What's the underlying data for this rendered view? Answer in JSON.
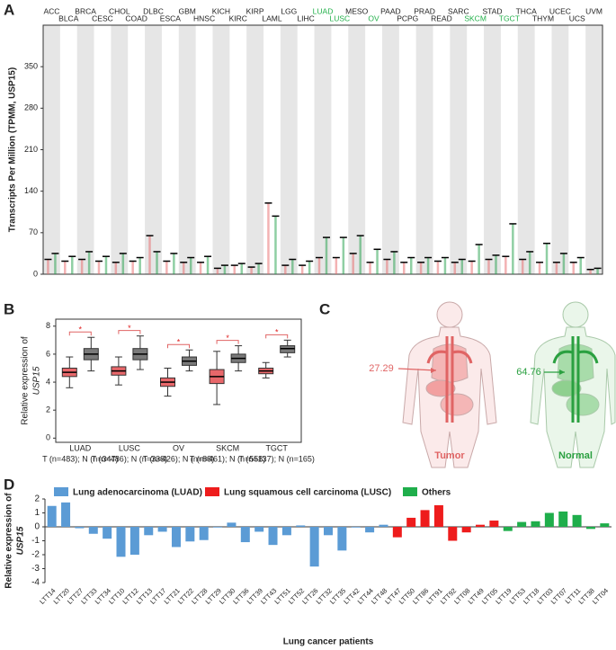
{
  "panel_labels": [
    "A",
    "B",
    "C",
    "D"
  ],
  "chart_data": [
    {
      "type": "strip",
      "ylabel": "Transcripts Per Million (TPMM, USP15)",
      "categories": [
        "ACC",
        "BLCA",
        "BRCA",
        "CESC",
        "CHOL",
        "COAD",
        "DLBC",
        "ESCA",
        "GBM",
        "HNSC",
        "KICH",
        "KIRC",
        "KIRP",
        "LAML",
        "LGG",
        "LIHC",
        "LUAD",
        "LUSC",
        "MESO",
        "OV",
        "PAAD",
        "PCPG",
        "PRAD",
        "READ",
        "SARC",
        "SKCM",
        "STAD",
        "TGCT",
        "THCA",
        "THYM",
        "UCEC",
        "UCS",
        "UVM"
      ],
      "highlighted": [
        16,
        17,
        19,
        25,
        27
      ],
      "highlight_color": "#22b04a",
      "tumor_color": "#e8676a",
      "normal_color": "#22a04a",
      "tumor_medians": [
        25,
        22,
        25,
        22,
        20,
        22,
        65,
        22,
        20,
        20,
        10,
        15,
        12,
        120,
        15,
        15,
        28,
        28,
        35,
        20,
        25,
        20,
        20,
        22,
        20,
        22,
        25,
        30,
        25,
        20,
        20,
        20,
        8
      ],
      "normal_medians": [
        35,
        30,
        38,
        30,
        35,
        28,
        38,
        35,
        28,
        30,
        15,
        18,
        18,
        98,
        25,
        22,
        62,
        62,
        65,
        42,
        38,
        28,
        28,
        28,
        25,
        50,
        32,
        85,
        38,
        52,
        35,
        28,
        10
      ],
      "ylim": [
        0,
        420
      ],
      "yticks": [
        0,
        70,
        140,
        210,
        280,
        350
      ]
    },
    {
      "type": "box",
      "ylabel": [
        "Relative expression of",
        "USP15"
      ],
      "categories": [
        "LUAD",
        "LUSC",
        "OV",
        "SKCM",
        "TGCT"
      ],
      "subtitles": [
        "T (n=483); N (n=347)",
        "T (n=486); N (n=338)",
        "T (n=426); N (n=88)",
        "T (n=461); N (n=558)",
        "T (n=137); N (n=165)"
      ],
      "significance": [
        "*",
        "*",
        "*",
        "*",
        "*"
      ],
      "tumor": {
        "color": "#e8676a",
        "boxes": [
          {
            "min": 3.6,
            "q1": 4.4,
            "median": 4.7,
            "q3": 5.0,
            "max": 5.8
          },
          {
            "min": 3.8,
            "q1": 4.5,
            "median": 4.8,
            "q3": 5.1,
            "max": 5.8
          },
          {
            "min": 3.0,
            "q1": 3.7,
            "median": 4.0,
            "q3": 4.3,
            "max": 5.0
          },
          {
            "min": 2.4,
            "q1": 3.9,
            "median": 4.4,
            "q3": 4.9,
            "max": 6.2
          },
          {
            "min": 4.3,
            "q1": 4.6,
            "median": 4.8,
            "q3": 5.0,
            "max": 5.4
          }
        ]
      },
      "normal": {
        "color": "#7a7a7a",
        "boxes": [
          {
            "min": 4.8,
            "q1": 5.6,
            "median": 6.0,
            "q3": 6.4,
            "max": 7.2
          },
          {
            "min": 4.9,
            "q1": 5.6,
            "median": 6.0,
            "q3": 6.4,
            "max": 7.3
          },
          {
            "min": 4.8,
            "q1": 5.2,
            "median": 5.5,
            "q3": 5.8,
            "max": 6.3
          },
          {
            "min": 4.8,
            "q1": 5.4,
            "median": 5.7,
            "q3": 6.0,
            "max": 6.6
          },
          {
            "min": 5.8,
            "q1": 6.1,
            "median": 6.4,
            "q3": 6.6,
            "max": 7.0
          }
        ]
      },
      "ylim": [
        -0.3,
        8.5
      ],
      "yticks": [
        0,
        2,
        4,
        6,
        8
      ]
    },
    {
      "type": "bar",
      "ylabel": [
        "Relative expression of",
        "USP15"
      ],
      "xlabel": "Lung cancer patients",
      "categories": [
        "LTT14",
        "LTT20",
        "LTT27",
        "LTT33",
        "LTT34",
        "LTT10",
        "LTT12",
        "LTT13",
        "LTT17",
        "LTT21",
        "LTT22",
        "LTT28",
        "LTT29",
        "LTT30",
        "LTT36",
        "LTT39",
        "LTT43",
        "LTT51",
        "LTT52",
        "LTT26",
        "LTT32",
        "LTT35",
        "LTT42",
        "LTT44",
        "LTT48",
        "LTT47",
        "LTT50",
        "LTT86",
        "LTT91",
        "LTT92",
        "LTT08",
        "LTT49",
        "LTT05",
        "LTT19",
        "LTT53",
        "LTT18",
        "LTT03",
        "LTT07",
        "LTT11",
        "LTT38",
        "LTT04"
      ],
      "series": [
        {
          "name": "Lung adenocarcinoma (LUAD)",
          "color": "#5b9bd5",
          "values": [
            1.5,
            1.75,
            -0.1,
            -0.5,
            -0.85,
            -2.15,
            -2.0,
            -0.6,
            -0.35,
            -1.45,
            -1.05,
            -0.95,
            -0.05,
            0.3,
            -1.1,
            -0.35,
            -1.3,
            -0.6,
            0.1,
            -2.85,
            -0.6,
            -1.7,
            -0.05,
            -0.4,
            0.15,
            null,
            null,
            null,
            null,
            null,
            null,
            null,
            null,
            null,
            null,
            null,
            null,
            null,
            null,
            null,
            null
          ]
        },
        {
          "name": "Lung squamous cell carcinoma (LUSC)",
          "color": "#ee1c1c",
          "values": [
            null,
            null,
            null,
            null,
            null,
            null,
            null,
            null,
            null,
            null,
            null,
            null,
            null,
            null,
            null,
            null,
            null,
            null,
            null,
            null,
            null,
            null,
            null,
            null,
            null,
            -0.75,
            0.65,
            1.2,
            1.55,
            -1.0,
            -0.4,
            0.15,
            0.45,
            null,
            null,
            null,
            null,
            null,
            null,
            null,
            null
          ]
        },
        {
          "name": "Others",
          "color": "#1fae4b",
          "values": [
            null,
            null,
            null,
            null,
            null,
            null,
            null,
            null,
            null,
            null,
            null,
            null,
            null,
            null,
            null,
            null,
            null,
            null,
            null,
            null,
            null,
            null,
            null,
            null,
            null,
            null,
            null,
            null,
            null,
            null,
            null,
            null,
            null,
            -0.3,
            0.35,
            0.4,
            1.0,
            1.1,
            0.85,
            -0.15,
            0.25
          ]
        }
      ],
      "ylim": [
        -4,
        2
      ],
      "yticks": [
        -4,
        -3,
        -2,
        -1,
        0,
        1,
        2
      ]
    }
  ],
  "diagram": {
    "tumor": {
      "value": "27.29",
      "label": "Tumor"
    },
    "normal": {
      "value": "64.76",
      "label": "Normal"
    }
  }
}
